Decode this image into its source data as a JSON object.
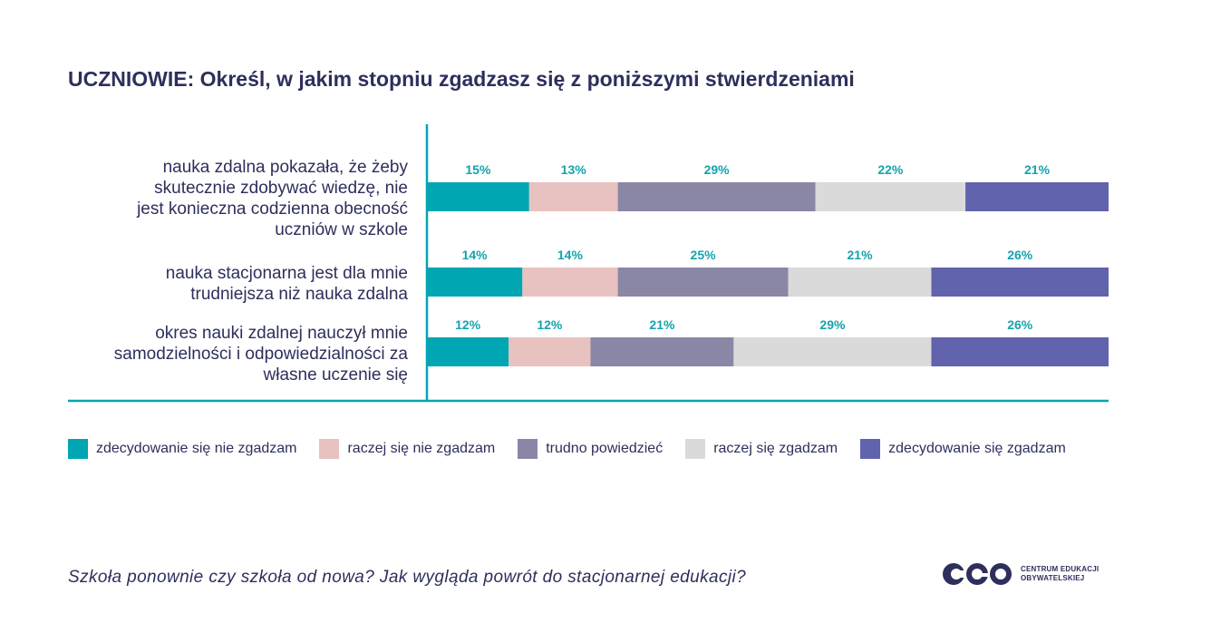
{
  "title": "UCZNIOWIE: Określ, w jakim stopniu zgadzasz się z poniższymi stwierdzeniami",
  "footer": "Szkoła ponownie czy szkoła od nowa? Jak wygląda powrót do stacjonarnej edukacji?",
  "logo": {
    "mark": "ceo",
    "line1": "CENTRUM EDUKACJI",
    "line2": "OBYWATELSKIEJ"
  },
  "colors": {
    "accent": "#00a6b1",
    "title": "#2d2f5c",
    "label_text": "#14a3ad"
  },
  "chart_data": {
    "type": "bar",
    "orientation": "horizontal-stacked-100",
    "categories": [
      [
        "nauka zdalna pokazała, że żeby",
        "skutecznie zdobywać wiedzę, nie",
        "jest konieczna codzienna obecność",
        "uczniów w szkole"
      ],
      [
        "nauka stacjonarna jest dla mnie",
        "trudniejsza niż nauka zdalna"
      ],
      [
        "okres nauki zdalnej nauczył mnie",
        "samodzielności i odpowiedzialności za",
        "własne uczenie się"
      ]
    ],
    "series": [
      {
        "name": "zdecydowanie się nie zgadzam",
        "color": "#00a6b1",
        "values": [
          15,
          14,
          12
        ]
      },
      {
        "name": "raczej się nie zgadzam",
        "color": "#e8c2c0",
        "values": [
          13,
          14,
          12
        ]
      },
      {
        "name": "trudno powiedzieć",
        "color": "#8a87a6",
        "values": [
          29,
          25,
          21
        ]
      },
      {
        "name": "raczej się zgadzam",
        "color": "#dadada",
        "values": [
          22,
          21,
          29
        ]
      },
      {
        "name": "zdecydowanie się zgadzam",
        "color": "#6163ad",
        "values": [
          21,
          26,
          26
        ]
      }
    ],
    "value_suffix": "%",
    "legend": "bottom"
  }
}
